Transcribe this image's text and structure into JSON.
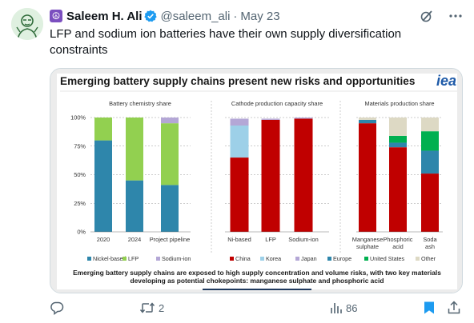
{
  "post": {
    "author_name": "Saleem H. Ali",
    "handle": "@saleem_ali",
    "separator": "·",
    "date": "May 23",
    "text": "LFP and sodium ion batteries have their own supply diversification constraints",
    "replies": "",
    "reposts": "2",
    "likes": "",
    "views": "86"
  },
  "infographic": {
    "title": "Emerging battery supply chains present new risks and opportunities",
    "logo": "iea",
    "caption_line1": "Emerging battery supply chains are exposed to high supply concentration and volume risks, with two key materials",
    "caption_line2": "developing as potential chokepoints: manganese sulphate and phosphoric acid"
  },
  "chart_data": [
    {
      "type": "bar",
      "stacked": true,
      "percent": true,
      "title": "Battery chemistry share",
      "categories": [
        "2020",
        "2024",
        "Project pipeline"
      ],
      "series": [
        {
          "name": "Nickel-based",
          "color": "#2e86ab",
          "values": [
            80,
            45,
            41
          ]
        },
        {
          "name": "LFP",
          "color": "#92d050",
          "values": [
            20,
            55,
            54
          ]
        },
        {
          "name": "Sodium-ion",
          "color": "#b4a7d6",
          "values": [
            0,
            0,
            5
          ]
        }
      ],
      "yticks": [
        "0%",
        "25%",
        "50%",
        "75%",
        "100%"
      ],
      "ylim": [
        0,
        100
      ]
    },
    {
      "type": "bar",
      "stacked": true,
      "percent": true,
      "title": "Cathode production capacity share",
      "categories": [
        "Ni-based",
        "LFP",
        "Sodium-ion"
      ],
      "series": [
        {
          "name": "China",
          "color": "#c00000",
          "values": [
            65,
            98,
            99
          ]
        },
        {
          "name": "Korea",
          "color": "#9dd0e8",
          "values": [
            28,
            0,
            0
          ]
        },
        {
          "name": "Japan",
          "color": "#b4a7d6",
          "values": [
            6,
            1,
            1
          ]
        }
      ],
      "ylim": [
        0,
        100
      ]
    },
    {
      "type": "bar",
      "stacked": true,
      "percent": true,
      "title": "Materials production share",
      "categories": [
        "Manganese sulphate",
        "Phosphoric acid",
        "Soda ash"
      ],
      "series": [
        {
          "name": "China",
          "color": "#c00000",
          "values": [
            95,
            74,
            51
          ]
        },
        {
          "name": "Europe",
          "color": "#2e86ab",
          "values": [
            3,
            4,
            20
          ]
        },
        {
          "name": "United States",
          "color": "#00b050",
          "values": [
            0,
            6,
            17
          ]
        },
        {
          "name": "Other",
          "color": "#ddd9c4",
          "values": [
            2,
            16,
            12
          ]
        }
      ],
      "ylim": [
        0,
        100
      ]
    }
  ],
  "legends": [
    [
      {
        "label": "Nickel-based",
        "color": "#2e86ab"
      },
      {
        "label": "LFP",
        "color": "#92d050"
      },
      {
        "label": "Sodium-ion",
        "color": "#b4a7d6"
      }
    ],
    [
      {
        "label": "China",
        "color": "#c00000"
      },
      {
        "label": "Korea",
        "color": "#9dd0e8"
      },
      {
        "label": "Japan",
        "color": "#b4a7d6"
      },
      {
        "label": "Europe",
        "color": "#2e86ab"
      },
      {
        "label": "United States",
        "color": "#00b050"
      },
      {
        "label": "Other",
        "color": "#ddd9c4"
      }
    ]
  ],
  "colors": {
    "verified": "#1d9bf0",
    "peace_badge": "#7b4fbf",
    "bookmark": "#1d9bf0",
    "iea_logo": "#1e5aa8"
  },
  "icons": [
    "peace-icon",
    "verified-icon",
    "grok-icon",
    "more-icon",
    "reply-icon",
    "repost-icon",
    "like-icon",
    "views-icon",
    "bookmark-icon",
    "share-icon"
  ]
}
